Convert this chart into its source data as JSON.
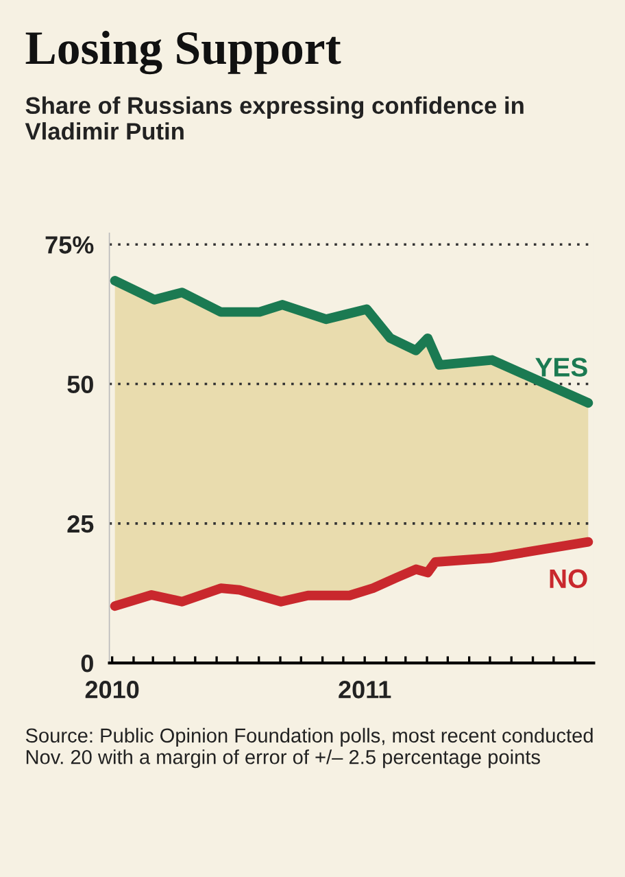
{
  "chart_data": {
    "type": "line",
    "title": "Losing Support",
    "subtitle": "Share of Russians expressing confidence in Vladimir Putin",
    "series": [
      {
        "name": "YES",
        "color": "#1b7a52",
        "x": [
          "2010-01-05",
          "2010-03-03",
          "2010-04-12",
          "2010-06-07",
          "2010-08-02",
          "2010-09-04",
          "2010-11-06",
          "2011-01-04",
          "2011-02-07",
          "2011-03-16",
          "2011-04-02",
          "2011-04-19",
          "2011-07-04",
          "2011-11-20"
        ],
        "values": [
          68.5,
          65.1,
          66.4,
          62.9,
          62.9,
          64.2,
          61.6,
          63.4,
          58.2,
          56.0,
          58.2,
          53.4,
          54.3,
          46.6
        ],
        "upper": [
          68.5,
          65.1,
          66.4,
          62.9,
          62.9,
          64.2,
          61.6,
          63.4,
          58.2,
          56.0,
          58.2,
          53.4,
          54.3,
          46.6
        ],
        "lower": [
          10.2,
          12.1,
          11.0,
          13.4,
          12.0,
          11.0,
          12.1,
          13.1,
          14.8,
          16.8,
          16.2,
          18.2,
          18.8,
          21.7
        ]
      },
      {
        "name": "NO",
        "color": "#c9282d",
        "x": [
          "2010-01-05",
          "2010-02-27",
          "2010-04-12",
          "2010-06-07",
          "2010-07-04",
          "2010-09-02",
          "2010-10-11",
          "2010-12-10",
          "2011-01-13",
          "2011-02-16",
          "2011-03-16",
          "2011-04-02",
          "2011-04-13",
          "2011-07-01",
          "2011-11-20"
        ],
        "values": [
          10.2,
          12.2,
          11.0,
          13.4,
          13.1,
          11.0,
          12.1,
          12.1,
          13.4,
          15.3,
          16.8,
          16.2,
          18.1,
          18.8,
          21.7
        ]
      }
    ],
    "xlim": [
      "2009-12-28",
      "2011-11-28"
    ],
    "xticks": [
      {
        "value": "2010-01-01",
        "label": "2010"
      },
      {
        "value": "2010-02-01",
        "label": null
      },
      {
        "value": "2010-03-01",
        "label": null
      },
      {
        "value": "2010-04-01",
        "label": null
      },
      {
        "value": "2010-05-01",
        "label": null
      },
      {
        "value": "2010-06-01",
        "label": null
      },
      {
        "value": "2010-07-01",
        "label": null
      },
      {
        "value": "2010-08-01",
        "label": null
      },
      {
        "value": "2010-09-01",
        "label": null
      },
      {
        "value": "2010-10-01",
        "label": null
      },
      {
        "value": "2010-11-01",
        "label": null
      },
      {
        "value": "2010-12-01",
        "label": null
      },
      {
        "value": "2011-01-01",
        "label": "2011"
      },
      {
        "value": "2011-02-01",
        "label": null
      },
      {
        "value": "2011-03-01",
        "label": null
      },
      {
        "value": "2011-04-01",
        "label": null
      },
      {
        "value": "2011-05-01",
        "label": null
      },
      {
        "value": "2011-06-01",
        "label": null
      },
      {
        "value": "2011-07-01",
        "label": null
      },
      {
        "value": "2011-08-01",
        "label": null
      },
      {
        "value": "2011-09-01",
        "label": null
      },
      {
        "value": "2011-10-01",
        "label": null
      },
      {
        "value": "2011-11-01",
        "label": null
      }
    ],
    "ylim": [
      0,
      77
    ],
    "yticks": [
      0,
      25,
      50,
      {
        "value": 75,
        "label": "75%"
      }
    ],
    "grid": "y",
    "legend": false,
    "line_style": "solid",
    "marker": "none",
    "annotations": [
      "Source: Public Opinion Foundation polls, most recent conducted Nov. 20 with a margin of error of +/– 2.5 percentage points"
    ]
  }
}
